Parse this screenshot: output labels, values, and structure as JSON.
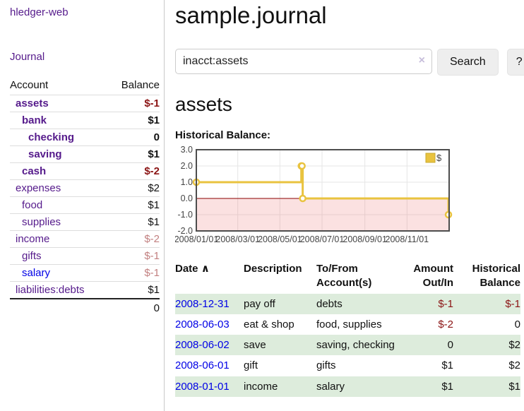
{
  "sidebar": {
    "app_title": "hledger-web",
    "nav_journal": "Journal",
    "headers": [
      "Account",
      "Balance"
    ],
    "accounts": [
      {
        "name": "assets",
        "indent": 1,
        "bold": true,
        "blue": false,
        "balance": "$-1",
        "balance_class": "bal-neg-strong"
      },
      {
        "name": "bank",
        "indent": 2,
        "bold": true,
        "blue": false,
        "balance": "$1",
        "balance_class": ""
      },
      {
        "name": "checking",
        "indent": 3,
        "bold": true,
        "blue": false,
        "balance": "0",
        "balance_class": ""
      },
      {
        "name": "saving",
        "indent": 3,
        "bold": true,
        "blue": false,
        "balance": "$1",
        "balance_class": ""
      },
      {
        "name": "cash",
        "indent": 2,
        "bold": true,
        "blue": false,
        "balance": "$-2",
        "balance_class": "bal-neg-strong"
      },
      {
        "name": "expenses",
        "indent": 1,
        "bold": false,
        "blue": false,
        "balance": "$2",
        "balance_class": ""
      },
      {
        "name": "food",
        "indent": 2,
        "bold": false,
        "blue": false,
        "balance": "$1",
        "balance_class": ""
      },
      {
        "name": "supplies",
        "indent": 2,
        "bold": false,
        "blue": false,
        "balance": "$1",
        "balance_class": ""
      },
      {
        "name": "income",
        "indent": 1,
        "bold": false,
        "blue": false,
        "balance": "$-2",
        "balance_class": "bal-neg-soft"
      },
      {
        "name": "gifts",
        "indent": 2,
        "bold": false,
        "blue": false,
        "balance": "$-1",
        "balance_class": "bal-neg-soft"
      },
      {
        "name": "salary",
        "indent": 2,
        "bold": false,
        "blue": true,
        "balance": "$-1",
        "balance_class": "bal-neg-soft"
      },
      {
        "name": "liabilities:debts",
        "indent": 1,
        "bold": false,
        "blue": false,
        "balance": "$1",
        "balance_class": ""
      }
    ],
    "total": "0"
  },
  "header": {
    "title": "sample.journal"
  },
  "search": {
    "value": "inacct:assets",
    "clear_icon": "×",
    "button_label": "Search",
    "help_label": "?"
  },
  "account_page": {
    "title": "assets",
    "chart_label": "Historical Balance:"
  },
  "chart_data": {
    "type": "line",
    "style": "step",
    "title": "Historical Balance:",
    "series": [
      {
        "name": "$",
        "points": [
          [
            "2008-01-01",
            1
          ],
          [
            "2008-06-01",
            2
          ],
          [
            "2008-06-02",
            2
          ],
          [
            "2008-06-03",
            0
          ],
          [
            "2008-12-31",
            -1
          ]
        ]
      }
    ],
    "x_ticks": [
      "2008/01/01",
      "2008/03/01",
      "2008/05/01",
      "2008/07/01",
      "2008/09/01",
      "2008/11/01"
    ],
    "x_range": [
      "2008-01-01",
      "2009-01-01"
    ],
    "y_ticks": [
      3.0,
      2.0,
      1.0,
      0.0,
      -1.0,
      -2.0
    ],
    "ylim": [
      -2,
      3
    ],
    "grid": true,
    "legend_position": "top-right",
    "negative_region_shaded": true
  },
  "register": {
    "headers": {
      "date": "Date",
      "sort_arrow": "∧",
      "description": "Description",
      "account": "To/From Account(s)",
      "amount": "Amount Out/In",
      "balance": "Historical Balance"
    },
    "rows": [
      {
        "date": "2008-12-31",
        "description": "pay off",
        "account": "debts",
        "amount": "$-1",
        "amount_neg": true,
        "balance": "$-1",
        "balance_neg": true,
        "shaded": true
      },
      {
        "date": "2008-06-03",
        "description": "eat & shop",
        "account": "food, supplies",
        "amount": "$-2",
        "amount_neg": true,
        "balance": "0",
        "balance_neg": false,
        "shaded": false
      },
      {
        "date": "2008-06-02",
        "description": "save",
        "account": "saving, checking",
        "amount": "0",
        "amount_neg": false,
        "balance": "$2",
        "balance_neg": false,
        "shaded": true
      },
      {
        "date": "2008-06-01",
        "description": "gift",
        "account": "gifts",
        "amount": "$1",
        "amount_neg": false,
        "balance": "$2",
        "balance_neg": false,
        "shaded": false
      },
      {
        "date": "2008-01-01",
        "description": "income",
        "account": "salary",
        "amount": "$1",
        "amount_neg": false,
        "balance": "$1",
        "balance_neg": false,
        "shaded": true
      }
    ]
  },
  "colors": {
    "link_purple": "#551a8b",
    "link_blue": "#0000e6",
    "negative_strong": "#8b1414",
    "negative_soft": "#c28080",
    "row_green": "#ddecdc",
    "chart_line": "#e9c33f",
    "chart_line_border": "#c9a92c",
    "chart_zero_line": "#8b0000",
    "chart_negative_fill": "rgba(235,105,105,0.20)",
    "chart_grid": "#e6e6e6",
    "chart_border": "#4d4d4d"
  }
}
